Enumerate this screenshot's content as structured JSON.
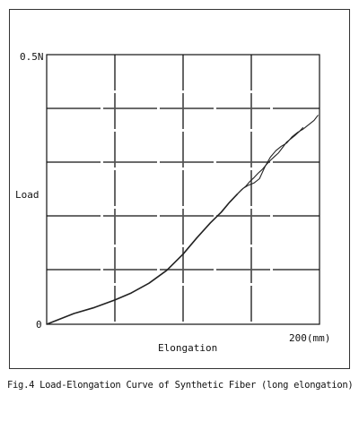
{
  "chart_data": {
    "type": "line",
    "title": "",
    "xlabel": "Elongation",
    "ylabel": "Load",
    "xlim": [
      0,
      200
    ],
    "ylim": [
      0,
      0.5
    ],
    "y_tick_labels": {
      "top": "0.5N",
      "bottom": "0"
    },
    "x_tick_labels": {
      "right": "200(mm)"
    },
    "grid": true,
    "series": [
      {
        "x": [
          0,
          10,
          20,
          35,
          50,
          62,
          75,
          88,
          100,
          110,
          120,
          128,
          134,
          140
        ],
        "y": [
          0,
          0.01,
          0.02,
          0.031,
          0.045,
          0.058,
          0.076,
          0.1,
          0.13,
          0.16,
          0.188,
          0.208,
          0.226,
          0.242
        ]
      },
      {
        "x": [
          140,
          144,
          148,
          152,
          156,
          160,
          164,
          168,
          172,
          176,
          180,
          184,
          188,
          192,
          196,
          199
        ],
        "y": [
          0.242,
          0.252,
          0.258,
          0.262,
          0.27,
          0.292,
          0.31,
          0.322,
          0.33,
          0.336,
          0.348,
          0.356,
          0.362,
          0.37,
          0.378,
          0.388
        ]
      },
      {
        "x": [
          140,
          143,
          146,
          149,
          152,
          155,
          158,
          161,
          164,
          167,
          170,
          173,
          176,
          179,
          182,
          185,
          188
        ],
        "y": [
          0.242,
          0.25,
          0.256,
          0.265,
          0.272,
          0.28,
          0.287,
          0.296,
          0.304,
          0.311,
          0.318,
          0.328,
          0.338,
          0.344,
          0.35,
          0.357,
          0.365
        ]
      }
    ]
  },
  "caption": "Fig.4 Load-Elongation Curve of Synthetic Fiber (long elongation)",
  "colors": {
    "series": "#222222",
    "grid": "#555555",
    "axis": "#111111"
  }
}
